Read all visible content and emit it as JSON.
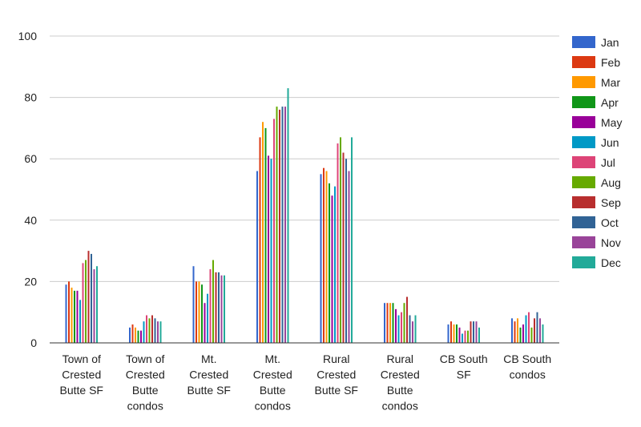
{
  "chart_data": {
    "type": "bar",
    "categories": [
      "Town of Crested Butte SF",
      "Town of Crested Butte condos",
      "Mt. Crested Butte SF",
      "Mt. Crested Butte condos",
      "Rural Crested Butte SF",
      "Rural Crested Butte condos",
      "CB South SF",
      "CB South condos"
    ],
    "category_lines": [
      [
        "Town of",
        "Crested",
        "Butte SF"
      ],
      [
        "Town of",
        "Crested",
        "Butte",
        "condos"
      ],
      [
        "Mt.",
        "Crested",
        "Butte SF"
      ],
      [
        "Mt.",
        "Crested",
        "Butte",
        "condos"
      ],
      [
        "Rural",
        "Crested",
        "Butte SF"
      ],
      [
        "Rural",
        "Crested",
        "Butte",
        "condos"
      ],
      [
        "CB South",
        "SF"
      ],
      [
        "CB South",
        "condos"
      ]
    ],
    "series": [
      {
        "name": "Jan",
        "color": "#3366cc",
        "values": [
          19,
          5,
          25,
          56,
          55,
          13,
          6,
          8
        ]
      },
      {
        "name": "Feb",
        "color": "#dc3912",
        "values": [
          20,
          6,
          20,
          67,
          57,
          13,
          7,
          7
        ]
      },
      {
        "name": "Mar",
        "color": "#ff9900",
        "values": [
          18,
          5,
          20,
          72,
          56,
          13,
          6,
          8
        ]
      },
      {
        "name": "Apr",
        "color": "#109618",
        "values": [
          17,
          4,
          19,
          70,
          52,
          13,
          6,
          5
        ]
      },
      {
        "name": "May",
        "color": "#990099",
        "values": [
          17,
          4,
          13,
          61,
          48,
          11,
          5,
          6
        ]
      },
      {
        "name": "Jun",
        "color": "#0099c6",
        "values": [
          14,
          7,
          16,
          60,
          51,
          9,
          3,
          9
        ]
      },
      {
        "name": "Jul",
        "color": "#dd4477",
        "values": [
          26,
          9,
          24,
          73,
          65,
          10,
          4,
          10
        ]
      },
      {
        "name": "Aug",
        "color": "#66aa00",
        "values": [
          27,
          8,
          27,
          77,
          67,
          13,
          4,
          5
        ]
      },
      {
        "name": "Sep",
        "color": "#b82e2e",
        "values": [
          30,
          9,
          23,
          76,
          62,
          15,
          7,
          8
        ]
      },
      {
        "name": "Oct",
        "color": "#316395",
        "values": [
          29,
          8,
          23,
          77,
          60,
          9,
          7,
          10
        ]
      },
      {
        "name": "Nov",
        "color": "#994499",
        "values": [
          24,
          7,
          22,
          77,
          56,
          7,
          7,
          8
        ]
      },
      {
        "name": "Dec",
        "color": "#22aa99",
        "values": [
          25,
          7,
          22,
          83,
          67,
          9,
          5,
          6
        ]
      }
    ],
    "title": "",
    "xlabel": "",
    "ylabel": "",
    "ylim": [
      0,
      100
    ],
    "yticks": [
      0,
      20,
      40,
      60,
      80,
      100
    ],
    "grid": true,
    "legend_position": "right"
  }
}
